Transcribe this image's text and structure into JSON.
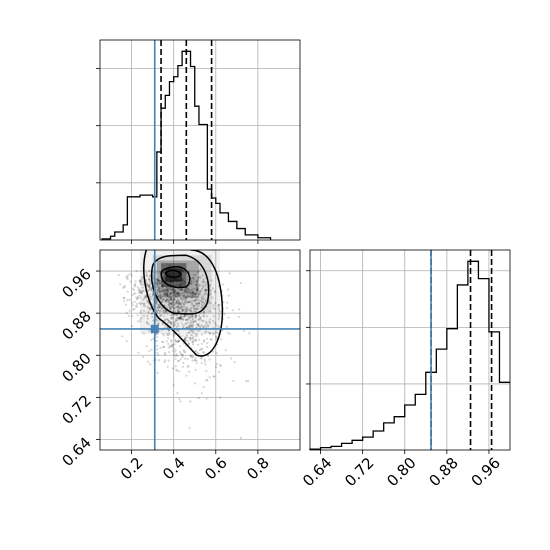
{
  "chart_data": {
    "type": "corner",
    "parameters": [
      {
        "name": "",
        "range": [
          0.05,
          1.0
        ],
        "ticks": [
          "0.2",
          "0.4",
          "0.6",
          "0.8"
        ]
      },
      {
        "name": "",
        "range": [
          0.62,
          1.0
        ],
        "ticks": [
          "0.64",
          "0.72",
          "0.80",
          "0.88",
          "0.96"
        ]
      }
    ],
    "truth": [
      0.31,
      0.85
    ],
    "truth_color": "#4682b4",
    "grid": true,
    "marginals": [
      {
        "parameter_index": 0,
        "hist_type": "step",
        "bin_edges": [
          0.06,
          0.1,
          0.12,
          0.16,
          0.18,
          0.24,
          0.3,
          0.32,
          0.34,
          0.36,
          0.38,
          0.4,
          0.42,
          0.44,
          0.46,
          0.48,
          0.5,
          0.52,
          0.54,
          0.56,
          0.58,
          0.6,
          0.62,
          0.66,
          0.7,
          0.74,
          0.8,
          0.86
        ],
        "counts": [
          0.4,
          1.3,
          2.8,
          5.3,
          15.1,
          15.7,
          15.1,
          30.8,
          46.1,
          50.6,
          55.4,
          57.1,
          61.0,
          66.0,
          66.0,
          60.7,
          46.8,
          40.4,
          40.4,
          17.8,
          14.7,
          12.8,
          9.5,
          6.5,
          4.0,
          1.8,
          0.8
        ],
        "quantiles": [
          0.34,
          0.46,
          0.58
        ]
      },
      {
        "parameter_index": 1,
        "hist_type": "step",
        "bin_edges": [
          0.62,
          0.64,
          0.66,
          0.68,
          0.7,
          0.72,
          0.74,
          0.76,
          0.78,
          0.8,
          0.82,
          0.84,
          0.86,
          0.88,
          0.9,
          0.92,
          0.94,
          0.96,
          0.98,
          1.0
        ],
        "counts": [
          0.5,
          1.5,
          2.3,
          4.2,
          6.1,
          8.1,
          12.0,
          17.1,
          21.0,
          28.4,
          35.1,
          49.0,
          63.6,
          76.5,
          104.1,
          119.0,
          108.1,
          74.5,
          42.7
        ],
        "quantiles": [
          0.85,
          0.925,
          0.965
        ]
      }
    ],
    "joint": {
      "x_param": 0,
      "y_param": 1,
      "density_peak": [
        0.38,
        0.95
      ],
      "contour_levels": 3
    }
  }
}
